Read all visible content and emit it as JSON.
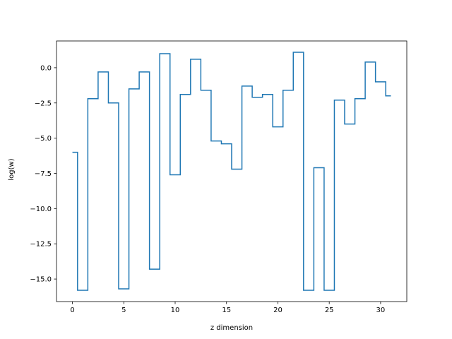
{
  "chart_data": {
    "type": "line",
    "drawstyle": "steps-mid",
    "title": "",
    "xlabel": "z dimension",
    "ylabel": "log(w)",
    "xlim": [
      -1.55,
      32.55
    ],
    "ylim": [
      -16.6,
      1.9
    ],
    "xticks": [
      0,
      5,
      10,
      15,
      20,
      25,
      30
    ],
    "xtick_labels": [
      "0",
      "5",
      "10",
      "15",
      "20",
      "25",
      "30"
    ],
    "yticks": [
      0.0,
      -2.5,
      -5.0,
      -7.5,
      -10.0,
      -12.5,
      -15.0
    ],
    "ytick_labels": [
      "0.0",
      "−2.5",
      "−5.0",
      "−7.5",
      "−10.0",
      "−12.5",
      "−15.0"
    ],
    "grid": false,
    "legend": "none",
    "line_color": "#1f77b4",
    "series": [
      {
        "x": [
          0,
          1,
          2,
          3,
          4,
          5,
          6,
          7,
          8,
          9,
          10,
          11,
          12,
          13,
          14,
          15,
          16,
          17,
          18,
          19,
          20,
          21,
          22,
          23,
          24,
          25,
          26,
          27,
          28,
          29,
          30,
          31
        ],
        "values": [
          -6.0,
          -15.8,
          -2.2,
          -0.3,
          -2.5,
          -15.7,
          -1.5,
          -0.3,
          -14.3,
          1.0,
          -7.6,
          -1.9,
          0.6,
          -1.6,
          -5.2,
          -5.4,
          -7.2,
          -1.3,
          -2.1,
          -1.9,
          -4.2,
          -1.6,
          1.1,
          -15.8,
          -7.1,
          -15.8,
          -2.3,
          -4.0,
          -2.2,
          0.4,
          -1.0,
          -2.0
        ]
      }
    ]
  }
}
